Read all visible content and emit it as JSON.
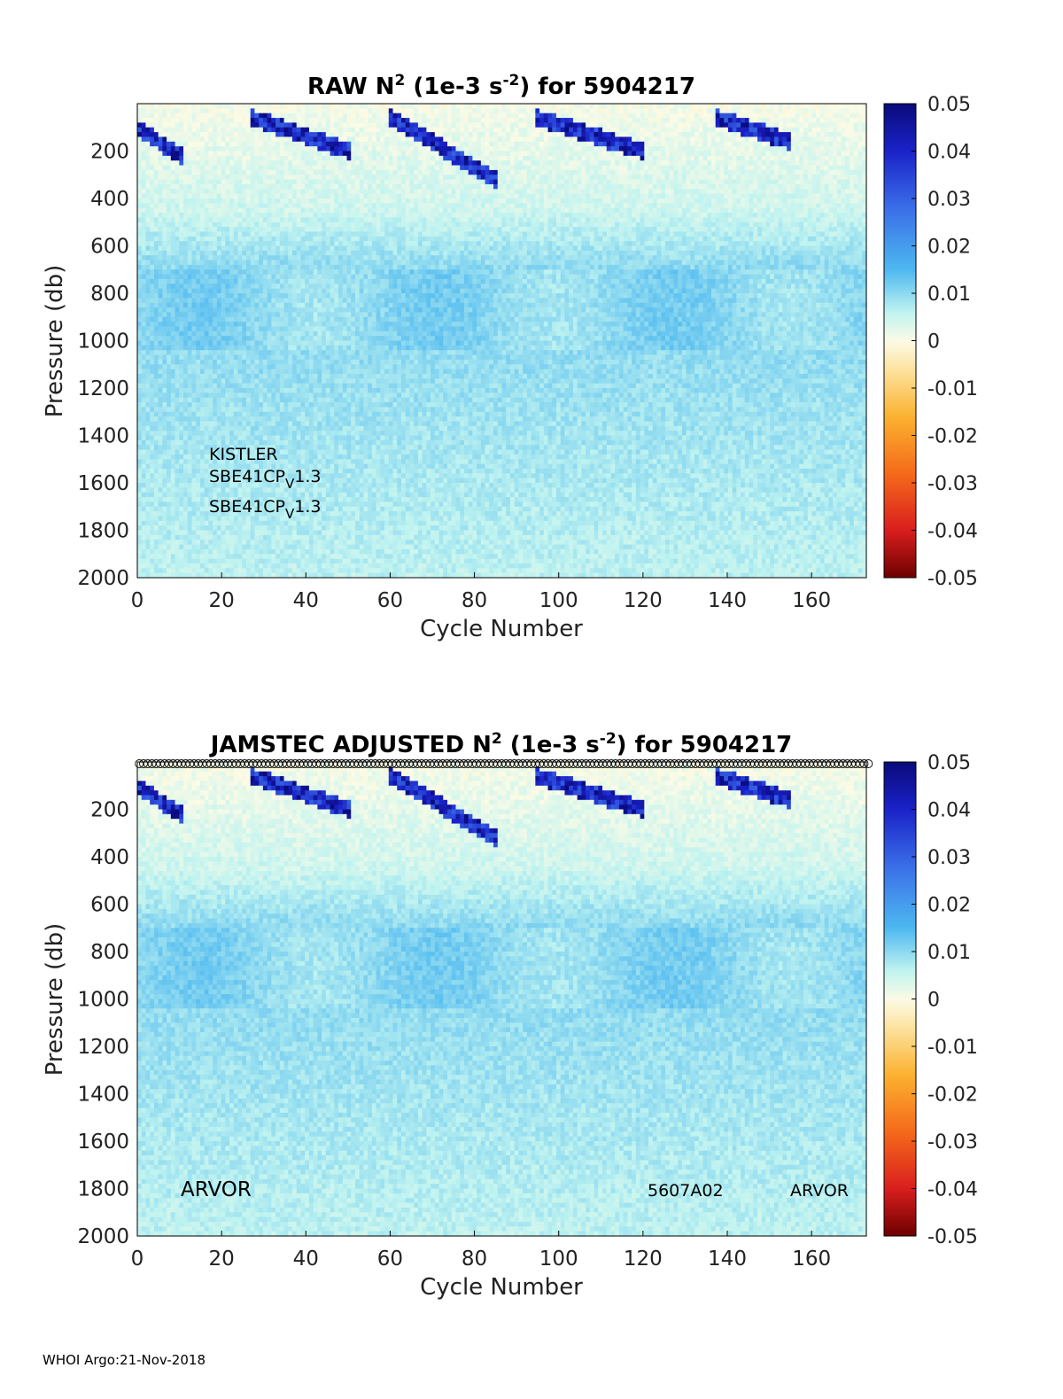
{
  "chart_data": [
    {
      "type": "heatmap",
      "id": "raw",
      "title": {
        "pre": "RAW N",
        "sup1": "2",
        "mid": " (1e-3 s",
        "sup2": "-2",
        "post": ") for 5904217"
      },
      "xlabel": "Cycle Number",
      "ylabel": "Pressure (db)",
      "xlim": [
        0,
        173
      ],
      "ylim": [
        0,
        2000
      ],
      "xticks": [
        0,
        20,
        40,
        60,
        80,
        100,
        120,
        140,
        160
      ],
      "yticks": [
        200,
        400,
        600,
        800,
        1000,
        1200,
        1400,
        1600,
        1800,
        2000
      ],
      "colorbar": {
        "min": -0.05,
        "max": 0.05,
        "ticks": [
          "0.05",
          "0.04",
          "0.03",
          "0.02",
          "0.01",
          "0",
          "-0.01",
          "-0.02",
          "-0.03",
          "-0.04",
          "-0.05"
        ]
      },
      "annotations": {
        "line1": "KISTLER",
        "line2": {
          "main": "SBE41CP",
          "sub": "V",
          "tail": "1.3"
        },
        "line3": {
          "main": "SBE41CP",
          "sub": "V",
          "tail": "1.3"
        }
      },
      "features": {
        "surface_strong_stratification_bands_cycles": [
          [
            0,
            10
          ],
          [
            27,
            50
          ],
          [
            60,
            85
          ],
          [
            95,
            120
          ],
          [
            138,
            155
          ]
        ],
        "weakly_negative_layer_db": [
          0,
          450
        ],
        "mid_depth_max_db": [
          700,
          1000
        ],
        "typical_deep_value": 0.008
      }
    },
    {
      "type": "heatmap",
      "id": "adjusted",
      "title": {
        "pre": "JAMSTEC  ADJUSTED N",
        "sup1": "2",
        "mid": " (1e-3 s",
        "sup2": "-2",
        "post": ") for 5904217"
      },
      "xlabel": "Cycle Number",
      "ylabel": "Pressure (db)",
      "xlim": [
        0,
        173
      ],
      "ylim": [
        0,
        2000
      ],
      "xticks": [
        0,
        20,
        40,
        60,
        80,
        100,
        120,
        140,
        160
      ],
      "yticks": [
        200,
        400,
        600,
        800,
        1000,
        1200,
        1400,
        1600,
        1800,
        2000
      ],
      "colorbar": {
        "min": -0.05,
        "max": 0.05,
        "ticks": [
          "0.05",
          "0.04",
          "0.03",
          "0.02",
          "0.01",
          "0",
          "-0.01",
          "-0.02",
          "-0.03",
          "-0.04",
          "-0.05"
        ]
      },
      "annotations": {
        "left": "ARVOR",
        "mid": "5607A02",
        "right": "ARVOR"
      },
      "marker_row": {
        "symbol": "circle",
        "pressure_db": 0,
        "cycles_from": 1,
        "cycles_to": 174
      }
    }
  ],
  "footer": "WHOI Argo:21-Nov-2018"
}
